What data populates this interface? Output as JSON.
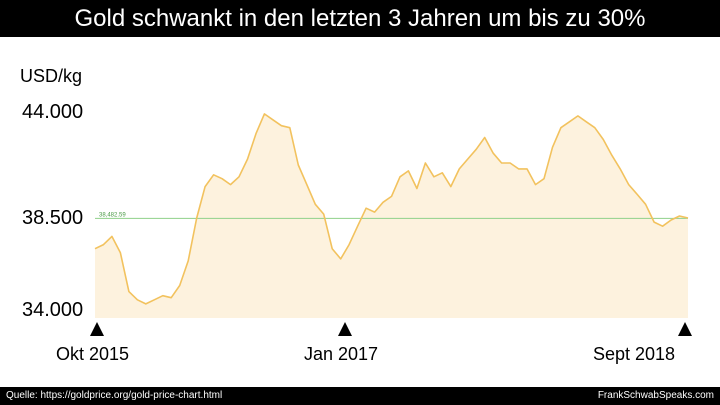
{
  "header": {
    "title": "Gold schwankt in den letzten 3 Jahren um bis zu 30%"
  },
  "footer": {
    "source": "Quelle: https://goldprice.org/gold-price-chart.html",
    "brand": "FrankSchwabSpeaks.com"
  },
  "colors": {
    "line": "#f2c25e",
    "fill": "#fdf2de",
    "reference": "#8fd18a"
  },
  "chart_data": {
    "type": "area",
    "ylabel": "USD/kg",
    "yticks": [
      "44.000",
      "38.500",
      "34.000"
    ],
    "ytick_values": [
      44000,
      38500,
      34000
    ],
    "xticks": [
      "Okt 2015",
      "Jan 2017",
      "Sept 2018"
    ],
    "xtick_positions": [
      0,
      15,
      35
    ],
    "ylim": [
      33800,
      45000
    ],
    "grid": false,
    "reference_line": {
      "value": 38482.59,
      "label": "38,482.59"
    },
    "x": [
      0,
      0.5,
      1,
      1.5,
      2,
      2.5,
      3,
      3.5,
      4,
      4.5,
      5,
      5.5,
      6,
      6.5,
      7,
      7.5,
      8,
      8.5,
      9,
      9.5,
      10,
      10.5,
      11,
      11.5,
      12,
      12.5,
      13,
      13.5,
      14,
      14.5,
      15,
      15.5,
      16,
      16.5,
      17,
      17.5,
      18,
      18.5,
      19,
      19.5,
      20,
      20.5,
      21,
      21.5,
      22,
      22.5,
      23,
      23.5,
      24,
      24.5,
      25,
      25.5,
      26,
      26.5,
      27,
      27.5,
      28,
      28.5,
      29,
      29.5,
      30,
      30.5,
      31,
      31.5,
      32,
      32.5,
      33,
      33.5,
      34,
      34.5,
      35
    ],
    "series": [
      {
        "values": [
          37000,
          37200,
          37600,
          36800,
          34900,
          34500,
          34300,
          34500,
          34700,
          34600,
          35200,
          36400,
          38500,
          40100,
          40700,
          40500,
          40200,
          40600,
          41500,
          42800,
          43800,
          43500,
          43200,
          43100,
          41200,
          40200,
          39200,
          38700,
          37000,
          36500,
          37200,
          38100,
          39000,
          38800,
          39300,
          39600,
          40600,
          40900,
          40000,
          41300,
          40600,
          40800,
          40100,
          41000,
          41500,
          42000,
          42600,
          41800,
          41300,
          41300,
          41000,
          41000,
          40200,
          40500,
          42100,
          43100,
          43400,
          43700,
          43400,
          43100,
          42500,
          41700,
          41000,
          40200,
          39700,
          39200,
          38300,
          38100,
          38400,
          38600,
          38500
        ]
      }
    ]
  }
}
